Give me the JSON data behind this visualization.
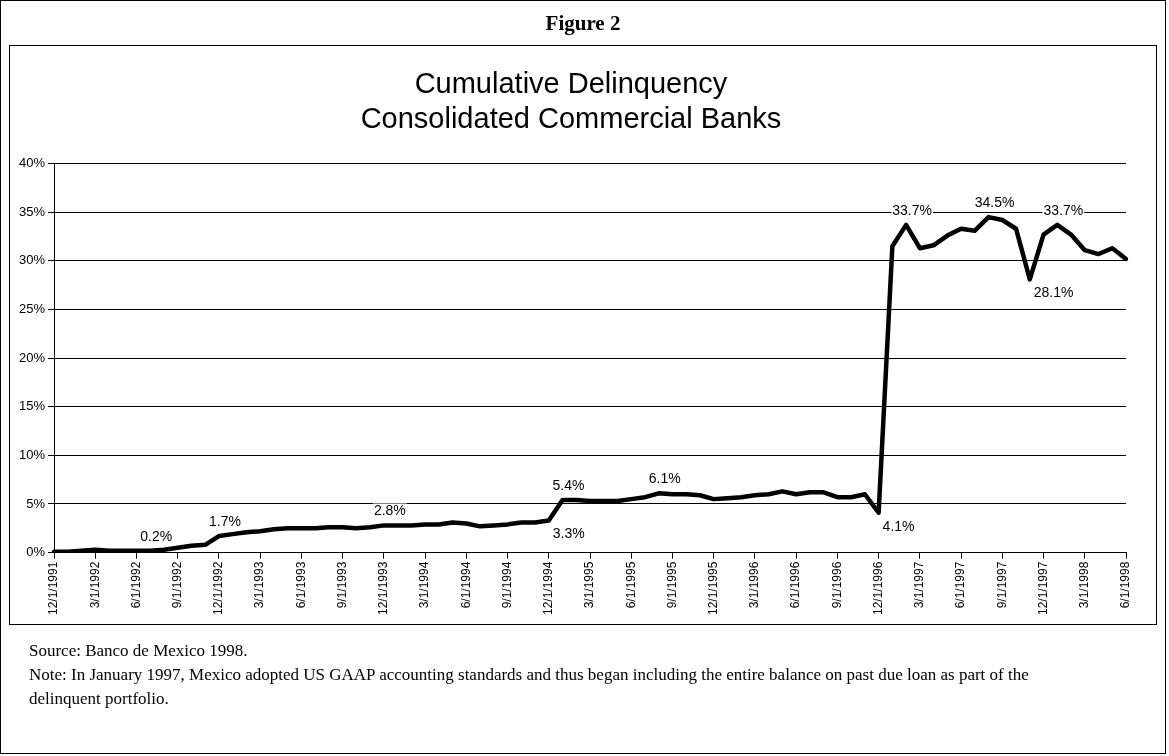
{
  "chart_data": {
    "type": "line",
    "title": "Figure 2",
    "subtitle": "Cumulative Delinquency\nConsolidated Commercial Banks",
    "categories": [
      "12/1/1991",
      null,
      null,
      "3/1/1992",
      null,
      null,
      "6/1/1992",
      null,
      null,
      "9/1/1992",
      null,
      null,
      "12/1/1992",
      null,
      null,
      "3/1/1993",
      null,
      null,
      "6/1/1993",
      null,
      null,
      "9/1/1993",
      null,
      null,
      "12/1/1993",
      null,
      null,
      "3/1/1994",
      null,
      null,
      "6/1/1994",
      null,
      null,
      "9/1/1994",
      null,
      null,
      "12/1/1994",
      null,
      null,
      "3/1/1995",
      null,
      null,
      "6/1/1995",
      null,
      null,
      "9/1/1995",
      null,
      null,
      "12/1/1995",
      null,
      null,
      "3/1/1996",
      null,
      null,
      "6/1/1996",
      null,
      null,
      "9/1/1996",
      null,
      null,
      "12/1/1996",
      null,
      null,
      "3/1/1997",
      null,
      null,
      "6/1/1997",
      null,
      null,
      "9/1/1997",
      null,
      null,
      "12/1/1997",
      null,
      null,
      "3/1/1998",
      null,
      null,
      "6/1/1998"
    ],
    "series": [
      {
        "color": "#000000",
        "values": [
          0.1,
          0.1,
          0.2,
          0.3,
          0.2,
          0.2,
          0.2,
          0.2,
          0.3,
          0.5,
          0.7,
          0.8,
          1.7,
          1.9,
          2.1,
          2.2,
          2.4,
          2.5,
          2.5,
          2.5,
          2.6,
          2.6,
          2.5,
          2.6,
          2.8,
          2.8,
          2.8,
          2.9,
          2.9,
          3.1,
          3.0,
          2.7,
          2.8,
          2.9,
          3.1,
          3.1,
          3.3,
          5.4,
          5.4,
          5.3,
          5.3,
          5.3,
          5.5,
          5.7,
          6.1,
          6.0,
          6.0,
          5.9,
          5.5,
          5.6,
          5.7,
          5.9,
          6.0,
          6.3,
          6.0,
          6.2,
          6.2,
          5.7,
          5.7,
          6.0,
          4.1,
          31.5,
          33.7,
          31.3,
          31.6,
          32.6,
          33.3,
          33.1,
          34.5,
          34.2,
          33.3,
          28.1,
          32.7,
          33.7,
          32.7,
          31.1,
          30.7,
          31.3,
          30.2
        ],
        "value_labels": [
          null,
          null,
          null,
          null,
          null,
          null,
          null,
          "0.2%",
          null,
          null,
          null,
          null,
          "1.7%",
          null,
          null,
          null,
          null,
          null,
          null,
          null,
          null,
          null,
          null,
          null,
          "2.8%",
          null,
          null,
          null,
          null,
          null,
          null,
          null,
          null,
          null,
          null,
          null,
          "3.3%",
          "5.4%",
          null,
          null,
          null,
          null,
          null,
          null,
          "6.1%",
          null,
          null,
          null,
          null,
          null,
          null,
          null,
          null,
          null,
          null,
          null,
          null,
          null,
          null,
          null,
          "4.1%",
          null,
          "33.7%",
          null,
          null,
          null,
          null,
          null,
          "34.5%",
          null,
          null,
          "28.1%",
          null,
          "33.7%",
          null,
          null,
          null,
          null,
          null
        ]
      }
    ],
    "ylim": [
      0,
      40
    ],
    "yticks": [
      {
        "value": 0,
        "label": "0%"
      },
      {
        "value": 5,
        "label": "5%"
      },
      {
        "value": 10,
        "label": "10%"
      },
      {
        "value": 15,
        "label": "15%"
      },
      {
        "value": 20,
        "label": "20%"
      },
      {
        "value": 25,
        "label": "25%"
      },
      {
        "value": 30,
        "label": "30%"
      },
      {
        "value": 35,
        "label": "35%"
      },
      {
        "value": 40,
        "label": "40%"
      }
    ],
    "grid": "y",
    "legend": false,
    "marker": "none",
    "line_style": "solid",
    "annotations": [
      "Source: Banco de Mexico 1998.",
      "Note: In January 1997, Mexico adopted US GAAP accounting standards and thus began including the entire balance on past due loan as part of the delinquent portfolio."
    ]
  }
}
